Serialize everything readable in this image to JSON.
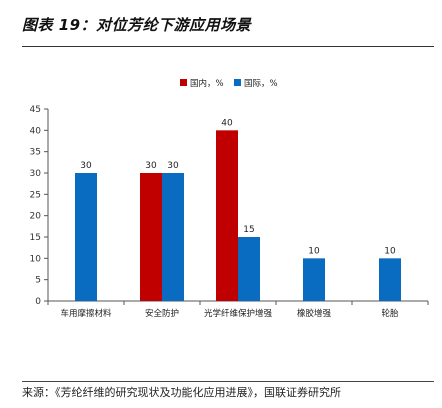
{
  "header": {
    "title": "图表 19：对位芳纶下游应用场景"
  },
  "source": "来源：《芳纶纤维的研究现状及功能化应用进展》，国联证券研究所",
  "colors": {
    "domestic": "#c00000",
    "international": "#0a6cc1"
  },
  "chart_data": {
    "type": "bar",
    "categories": [
      "车用摩擦材料",
      "安全防护",
      "光学纤维保护增强",
      "橡胶增强",
      "轮胎"
    ],
    "series": [
      {
        "name": "国内，%",
        "values": [
          null,
          30,
          40,
          null,
          null
        ]
      },
      {
        "name": "国际，%",
        "values": [
          30,
          30,
          15,
          10,
          10
        ]
      }
    ],
    "ylim": [
      0,
      45
    ],
    "yticks": [
      0,
      5,
      10,
      15,
      20,
      25,
      30,
      35,
      40,
      45
    ],
    "legend_position": "top-center",
    "grid": false
  }
}
